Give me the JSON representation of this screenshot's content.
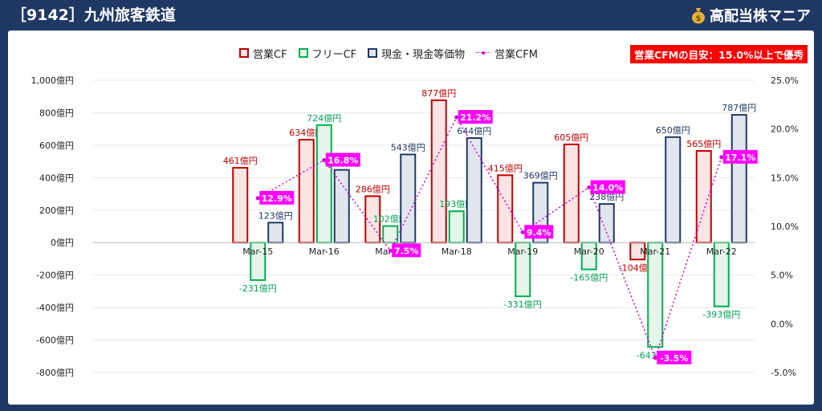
{
  "header": {
    "title": "［9142］九州旅客鉄道",
    "brand": "高配当株マニア",
    "brand_icon": "money-bag-icon"
  },
  "legend": [
    {
      "label": "営業CF",
      "kind": "box",
      "border": "#c00000",
      "fill": "#fbe4e4"
    },
    {
      "label": "フリーCF",
      "kind": "box",
      "border": "#00b050",
      "fill": "#e6f5ea"
    },
    {
      "label": "現金・現金等価物",
      "kind": "box",
      "border": "#1f3864",
      "fill": "#e1e6ee"
    },
    {
      "label": "営業CFM",
      "kind": "line",
      "color": "#d400d4"
    }
  ],
  "target_note": "営業CFMの目安：15.0%以上で優秀",
  "colors": {
    "op_border": "#c00000",
    "op_fill": "#fbe4e4",
    "op_label": "#c00000",
    "free_border": "#00b050",
    "free_fill": "#e6f5ea",
    "free_label": "#00a050",
    "cash_border": "#1f3864",
    "cash_fill": "#e1e6ee",
    "cash_label": "#1f3864",
    "cfm_line": "#d400d4",
    "cfm_label_bg": "#ff00ff",
    "cfm_label_text": "#ffffff",
    "grid": "#e8e8e8",
    "axis_text": "#222222"
  },
  "chart_data": {
    "type": "bar",
    "categories": [
      "",
      "",
      "Mar-15",
      "Mar-16",
      "Mar-17",
      "Mar-18",
      "Mar-19",
      "Mar-20",
      "Mar-21",
      "Mar-22"
    ],
    "series": [
      {
        "name": "営業CF",
        "values": [
          null,
          null,
          461,
          634,
          286,
          877,
          415,
          605,
          -104,
          565
        ],
        "labels": [
          "",
          "",
          "461億円",
          "634億円",
          "286億円",
          "877億円",
          "415億円",
          "605億円",
          "-104億円",
          "565億円"
        ]
      },
      {
        "name": "フリーCF",
        "values": [
          null,
          null,
          -231,
          724,
          102,
          193,
          -331,
          -165,
          -643,
          -393
        ],
        "labels": [
          "",
          "",
          "-231億円",
          "724億円",
          "102億円",
          "193億円",
          "-331億円",
          "-165億円",
          "-643億円",
          "-393億円"
        ]
      },
      {
        "name": "現金・現金等価物",
        "values": [
          null,
          null,
          123,
          448,
          543,
          644,
          369,
          238,
          650,
          787
        ],
        "labels": [
          "",
          "",
          "123億円",
          "448億円",
          "543億円",
          "644億円",
          "369億円",
          "238億円",
          "650億円",
          "787億円"
        ]
      },
      {
        "name": "営業CFM",
        "axis": "right",
        "values": [
          null,
          null,
          12.9,
          16.8,
          7.5,
          21.2,
          9.4,
          14.0,
          -3.5,
          17.1
        ],
        "labels": [
          "",
          "",
          "12.9%",
          "16.8%",
          "7.5%",
          "21.2%",
          "9.4%",
          "14.0%",
          "-3.5%",
          "17.1%"
        ]
      }
    ],
    "y_left": {
      "ylim": [
        -800,
        1000
      ],
      "ticks": [
        1000,
        800,
        600,
        400,
        200,
        0,
        -200,
        -400,
        -600,
        -800
      ],
      "tick_labels": [
        "1,000億円",
        "800億円",
        "600億円",
        "400億円",
        "200億円",
        "0億円",
        "-200億円",
        "-400億円",
        "-600億円",
        "-800億円"
      ]
    },
    "y_right": {
      "ylim": [
        -5,
        25
      ],
      "ticks": [
        25,
        20,
        15,
        10,
        5,
        0,
        -5
      ],
      "tick_labels": [
        "25.0%",
        "20.0%",
        "15.0%",
        "10.0%",
        "5.0%",
        "0.0%",
        "-5.0%"
      ]
    },
    "grid": true,
    "legend_position": "top"
  }
}
